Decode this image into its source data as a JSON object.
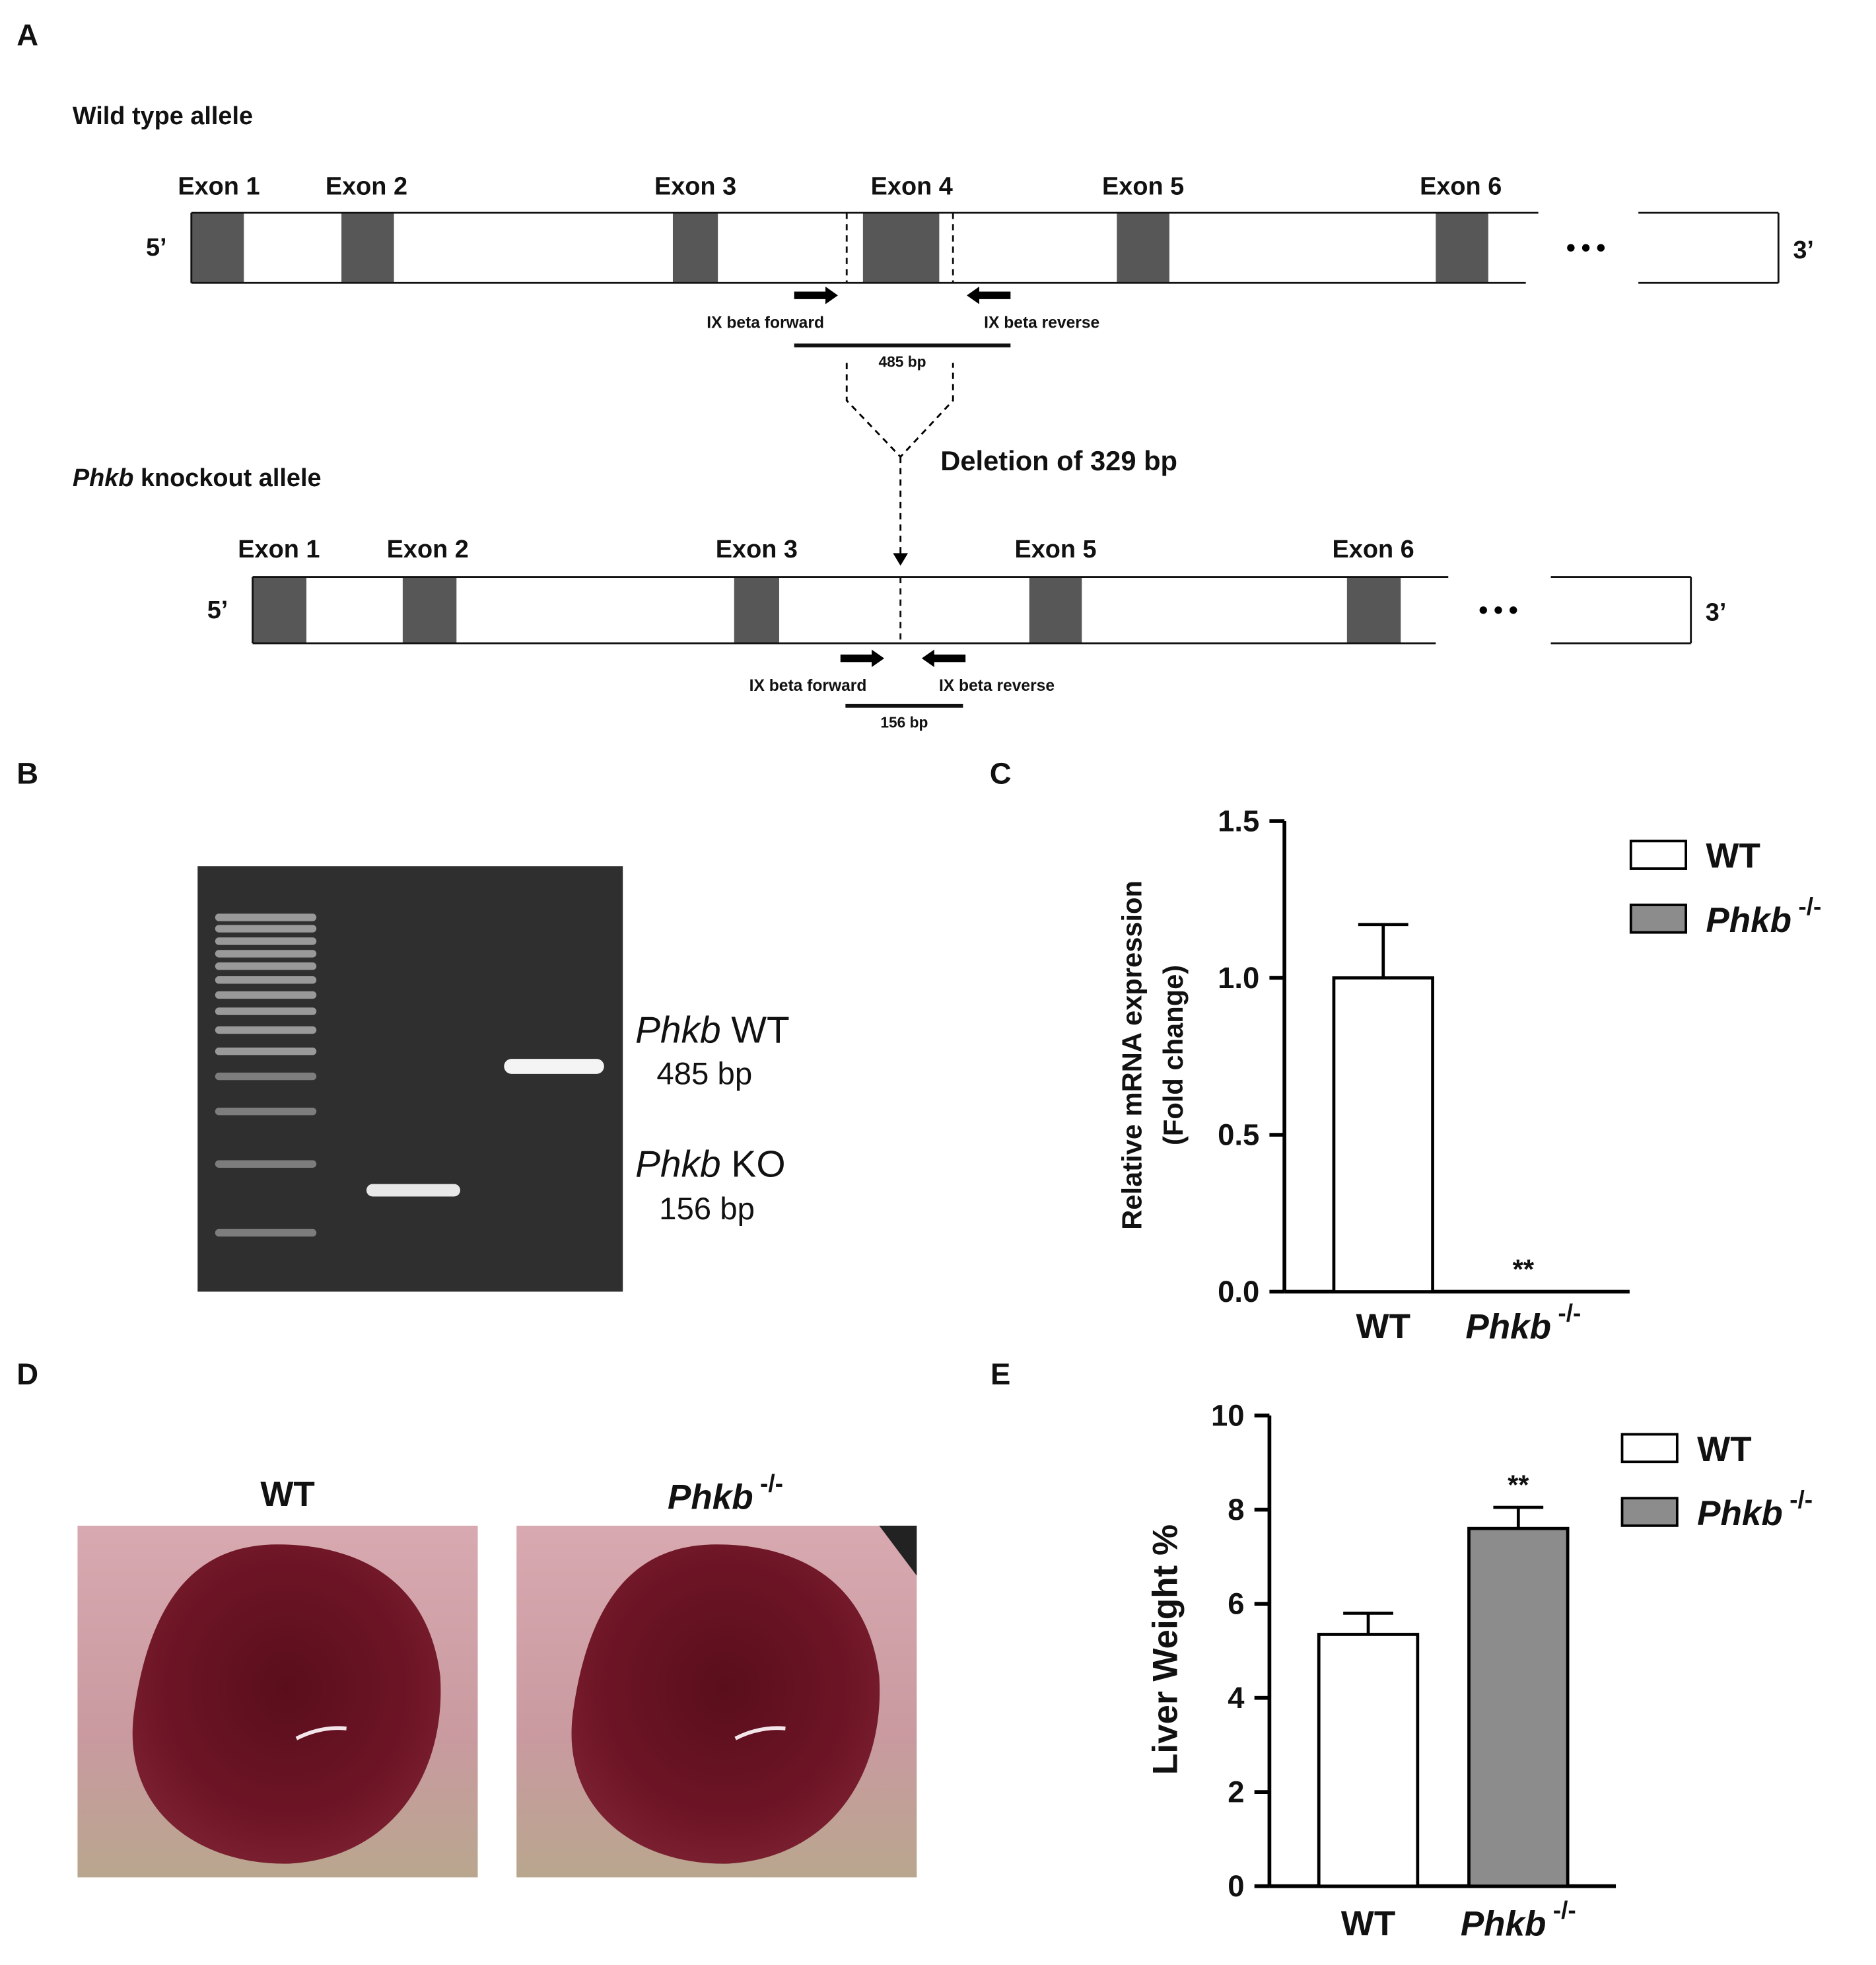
{
  "panels": {
    "a": "A",
    "b": "B",
    "c": "C",
    "d": "D",
    "e": "E"
  },
  "diagram": {
    "wild_type": {
      "title": "Wild type allele",
      "exons": [
        "Exon 1",
        "Exon 2",
        "Exon 3",
        "Exon 4",
        "Exon 5",
        "Exon 6"
      ],
      "five_prime": "5’",
      "three_prime": "3’",
      "forward": "IX beta forward",
      "reverse": "IX beta reverse",
      "product": "485 bp"
    },
    "deletion": "Deletion of 329 bp",
    "knockout": {
      "title": "Phkb knockout allele",
      "exons": [
        "Exon 1",
        "Exon 2",
        "Exon 3",
        "Exon 5",
        "Exon 6"
      ],
      "five_prime": "5’",
      "three_prime": "3’",
      "forward": "IX beta forward",
      "reverse": "IX beta reverse",
      "product": "156 bp"
    }
  },
  "gel": {
    "wt_label": "Phkb WT",
    "wt_size": "485 bp",
    "ko_label": "Phkb KO",
    "ko_size": "156 bp"
  },
  "photos": {
    "wt": "WT",
    "ko": "Phkb -/-"
  },
  "chart_data": [
    {
      "type": "bar",
      "ylabel": [
        "Relative mRNA expression",
        "(Fold change)"
      ],
      "categories": [
        "WT",
        "Phkb -/-"
      ],
      "series": [
        {
          "name": "WT",
          "color": "#ffffff",
          "values": [
            1.0,
            null
          ],
          "errors": [
            0.17,
            null
          ]
        },
        {
          "name": "Phkb -/-",
          "color": "#8c8c8c",
          "values": [
            null,
            0
          ],
          "errors": [
            null,
            null
          ]
        }
      ],
      "significance": [
        null,
        "**"
      ],
      "ylim": [
        0,
        1.5
      ],
      "yticks": [
        {
          "value": 0,
          "label": "0.0"
        },
        0.5,
        {
          "value": 1,
          "label": "1.0"
        },
        1.5
      ],
      "legend": "upper right"
    },
    {
      "type": "bar",
      "ylabel": [
        "Liver Weight %"
      ],
      "categories": [
        "WT",
        "Phkb -/-"
      ],
      "series": [
        {
          "name": "WT",
          "color": "#ffffff",
          "values": [
            5.35,
            null
          ],
          "errors": [
            0.45,
            null
          ]
        },
        {
          "name": "Phkb -/-",
          "color": "#8c8c8c",
          "values": [
            null,
            7.6
          ],
          "errors": [
            null,
            0.45
          ]
        }
      ],
      "significance": [
        null,
        "**"
      ],
      "ylim": [
        0,
        10
      ],
      "yticks": [
        0,
        2,
        4,
        6,
        8,
        10
      ],
      "legend": "upper right"
    }
  ]
}
